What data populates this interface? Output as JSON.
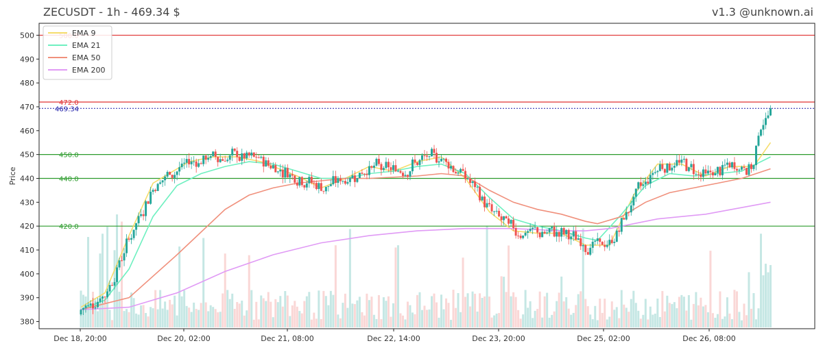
{
  "header": {
    "title": "ZECUSDT - 1h - 469.34 $",
    "version": "v1.3 @unknown.ai"
  },
  "chart_data": {
    "type": "candlestick",
    "symbol": "ZECUSDT",
    "interval": "1h",
    "last_price": 469.34,
    "ylabel": "Price",
    "ylim": [
      377,
      505
    ],
    "yticks": [
      380,
      390,
      400,
      410,
      420,
      430,
      440,
      450,
      460,
      470,
      480,
      490,
      500
    ],
    "xticks": [
      "Dec 18, 20:00",
      "Dec 20, 02:00",
      "Dec 21, 08:00",
      "Dec 22, 14:00",
      "Dec 23, 20:00",
      "Dec 25, 02:00",
      "Dec 26, 08:00"
    ],
    "grid": false,
    "legend_position": "top-left",
    "levels": [
      {
        "value": 500,
        "label": "500.0",
        "color": "#e03030"
      },
      {
        "value": 472.0,
        "label": "472.0",
        "color": "#e03030"
      },
      {
        "value": 450.0,
        "label": "450.0",
        "color": "#2a9a2a"
      },
      {
        "value": 440.0,
        "label": "440.0",
        "color": "#2a9a2a"
      },
      {
        "value": 420.0,
        "label": "420.0",
        "color": "#2a9a2a"
      }
    ],
    "last_price_line": {
      "value": 469.34,
      "label": "469.34",
      "color": "#1a1aa8"
    },
    "colors": {
      "up": "#26a69a",
      "down": "#ef5350",
      "up_volume": "#b2dfdb",
      "down_volume": "#f8c9c8"
    },
    "ema_series": [
      {
        "name": "EMA 9",
        "color": "#f5dc6b",
        "x": [
          0,
          10,
          20,
          30,
          45,
          55,
          65,
          75,
          90,
          100,
          110,
          120,
          130,
          140,
          150,
          160,
          170,
          180,
          190,
          200,
          210,
          220,
          230,
          240,
          250,
          260,
          270,
          280,
          287
        ],
        "values": [
          386,
          392,
          416,
          438,
          447,
          449,
          449,
          447,
          441,
          436,
          440,
          445,
          443,
          447,
          449,
          440,
          426,
          418,
          417,
          417,
          412,
          412,
          433,
          446,
          446,
          441,
          445,
          445,
          455
        ]
      },
      {
        "name": "EMA 21",
        "color": "#6ef0c0",
        "x": [
          0,
          10,
          20,
          30,
          40,
          50,
          60,
          70,
          80,
          90,
          100,
          110,
          120,
          130,
          140,
          150,
          160,
          170,
          180,
          190,
          200,
          210,
          215,
          225,
          235,
          245,
          255,
          265,
          275,
          287
        ],
        "values": [
          385,
          389,
          402,
          424,
          437,
          442,
          445,
          447,
          446,
          443,
          440,
          440,
          442,
          443,
          445,
          446,
          442,
          432,
          423,
          420,
          418,
          415,
          414,
          425,
          437,
          442,
          441,
          442,
          443,
          449
        ]
      },
      {
        "name": "EMA 50",
        "color": "#f0907c",
        "x": [
          0,
          20,
          40,
          60,
          70,
          80,
          90,
          100,
          110,
          120,
          140,
          150,
          160,
          170,
          180,
          190,
          200,
          210,
          215,
          225,
          235,
          245,
          255,
          265,
          275,
          287
        ],
        "values": [
          385,
          390,
          408,
          427,
          433,
          436,
          438,
          439,
          440,
          440,
          441,
          442,
          441,
          435,
          430,
          427,
          425,
          422,
          421,
          424,
          430,
          434,
          436,
          438,
          440,
          444
        ]
      },
      {
        "name": "EMA 200",
        "color": "#e09af5",
        "x": [
          0,
          20,
          40,
          60,
          80,
          100,
          120,
          140,
          160,
          180,
          200,
          210,
          220,
          240,
          260,
          287
        ],
        "values": [
          385,
          386,
          392,
          401,
          408,
          413,
          416,
          418,
          419,
          419,
          418,
          418,
          419,
          423,
          425,
          430
        ]
      }
    ]
  }
}
